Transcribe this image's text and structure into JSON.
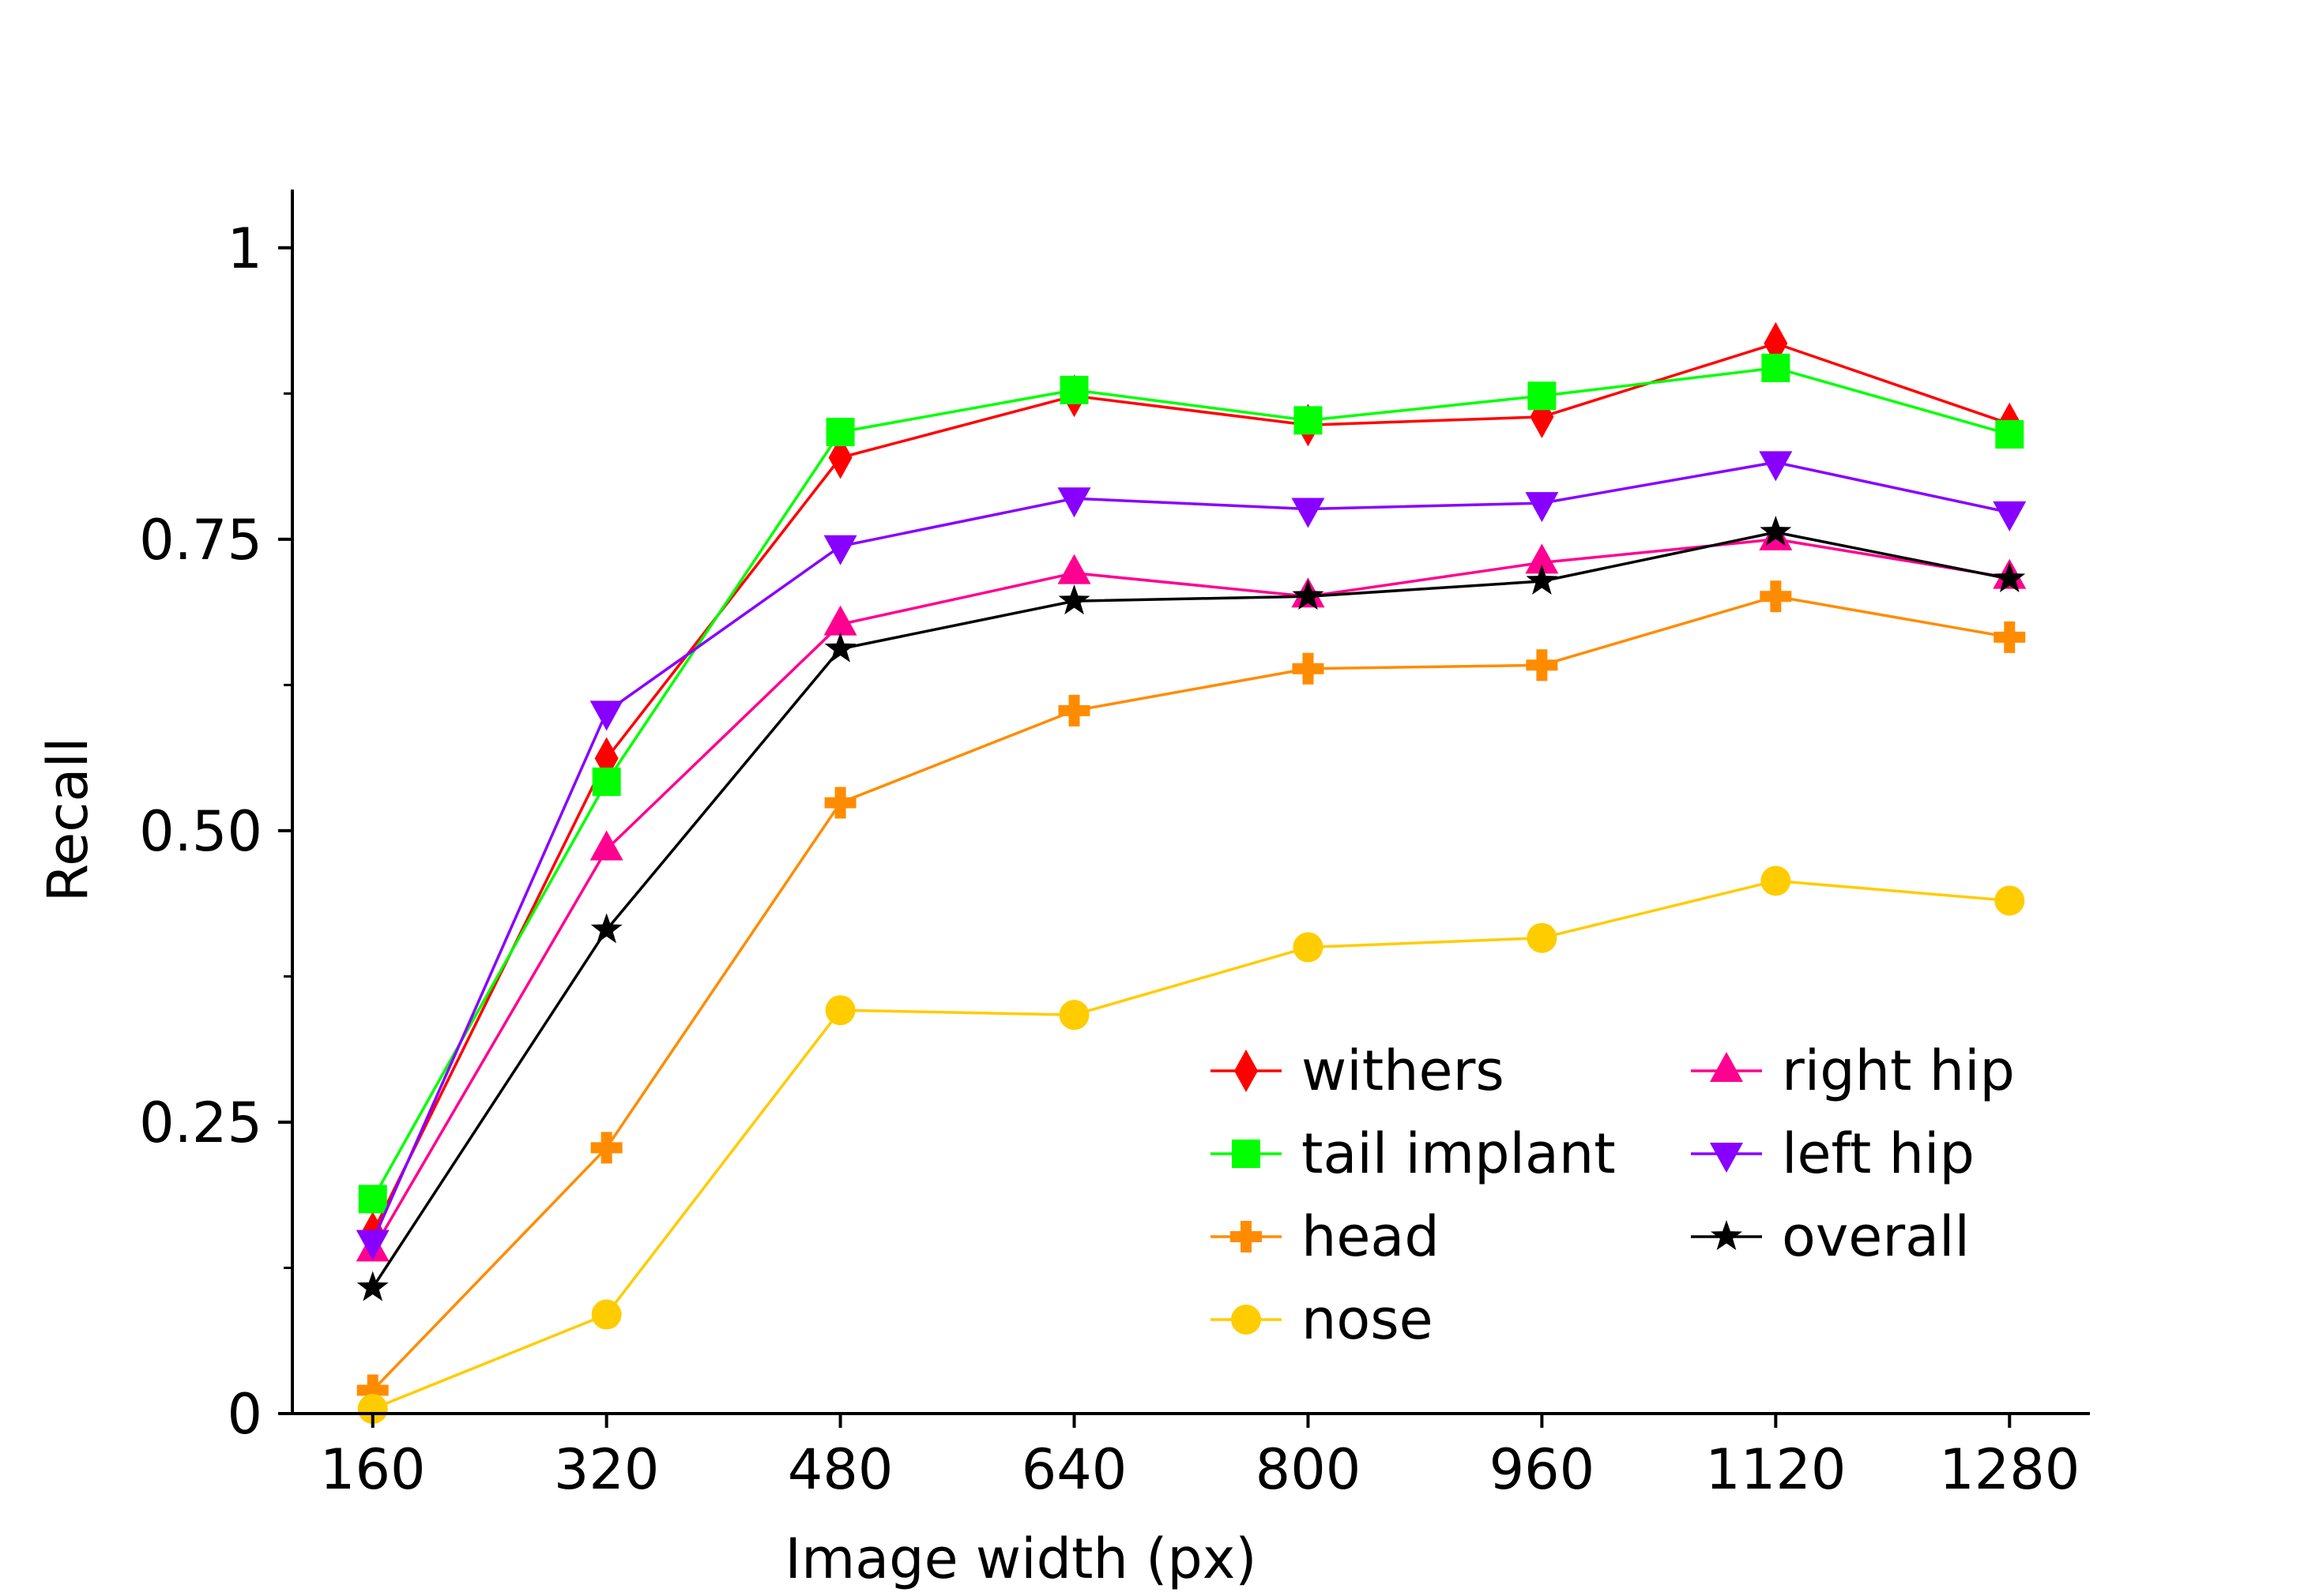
{
  "chart_data": {
    "type": "line",
    "title": "",
    "xlabel": "Image width (px)",
    "ylabel": "Recall",
    "categories": [
      "160",
      "320",
      "480",
      "640",
      "800",
      "960",
      "1120",
      "1280"
    ],
    "x": [
      160,
      320,
      480,
      640,
      800,
      960,
      1120,
      1280
    ],
    "xlim": [
      105,
      1335
    ],
    "ylim": [
      0,
      1.05
    ],
    "y_ticks": [
      0,
      0.25,
      0.5,
      0.75,
      1
    ],
    "y_tick_labels": [
      "0",
      "0.25",
      "0.50",
      "0.75",
      "1"
    ],
    "y_minor_ticks": [
      0.125,
      0.375,
      0.625,
      0.875
    ],
    "grid": false,
    "legend_position": "bottom-right",
    "legend_columns": 2,
    "series": [
      {
        "name": "withers",
        "color": "#ff0000",
        "marker": "thin-diamond",
        "values": [
          0.155,
          0.562,
          0.82,
          0.873,
          0.848,
          0.855,
          0.918,
          0.849
        ]
      },
      {
        "name": "tail implant",
        "color": "#00ff00",
        "marker": "square",
        "values": [
          0.184,
          0.542,
          0.842,
          0.878,
          0.852,
          0.873,
          0.897,
          0.84
        ]
      },
      {
        "name": "head",
        "color": "#ff8c00",
        "marker": "plus",
        "values": [
          0.02,
          0.228,
          0.524,
          0.603,
          0.639,
          0.642,
          0.701,
          0.666
        ]
      },
      {
        "name": "nose",
        "color": "#ffcc00",
        "marker": "circle",
        "values": [
          0.004,
          0.085,
          0.346,
          0.342,
          0.4,
          0.408,
          0.457,
          0.44
        ]
      },
      {
        "name": "right hip",
        "color": "#ff0090",
        "marker": "triangle-up",
        "values": [
          0.14,
          0.484,
          0.677,
          0.721,
          0.701,
          0.73,
          0.75,
          0.717
        ]
      },
      {
        "name": "left hip",
        "color": "#8800ff",
        "marker": "triangle-down",
        "values": [
          0.148,
          0.602,
          0.744,
          0.785,
          0.776,
          0.781,
          0.816,
          0.773
        ]
      },
      {
        "name": "overall",
        "color": "#000000",
        "marker": "star",
        "values": [
          0.108,
          0.415,
          0.656,
          0.697,
          0.701,
          0.714,
          0.756,
          0.716
        ]
      }
    ]
  }
}
